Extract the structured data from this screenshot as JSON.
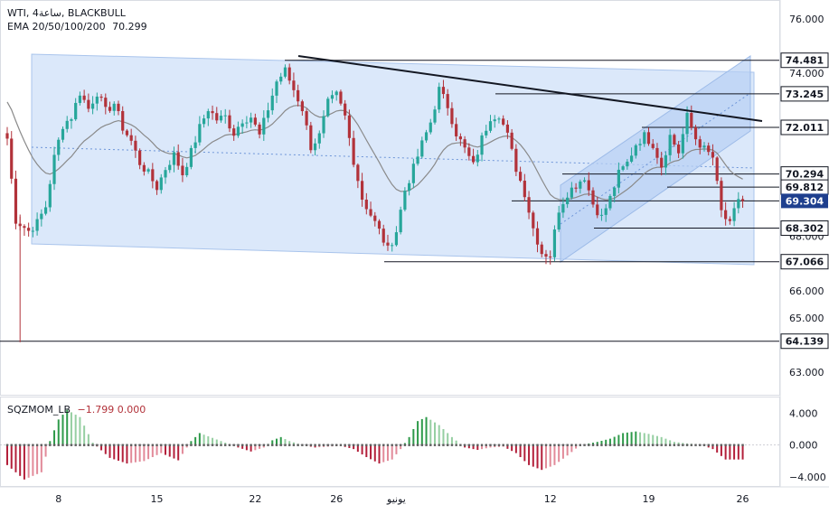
{
  "header": {
    "symbol": "WTI, 4ساعة, BLACKBULL",
    "indicator": "EMA 20/50/100/200",
    "indicator_value": "70.299"
  },
  "sub_header": {
    "indicator": "SQZMOM_LB",
    "values": "−1.799  0.000"
  },
  "colors": {
    "up": "#26a69a",
    "down": "#b2323a",
    "ema": "#8a8a8a",
    "channel_fill": "#cfe0f8",
    "trendline": "#131722",
    "price_tag": "#1e3f8e",
    "mom_pos": "#67b377",
    "mom_neg": "#c33b52"
  },
  "chart_data": [
    {
      "type": "candlestick",
      "title": "WTI, 4ساعة, BLACKBULL",
      "x_ticks": [
        "8",
        "15",
        "22",
        "26",
        "يونيو",
        "12",
        "19",
        "26"
      ],
      "y_ticks": [
        "76.000",
        "74.000",
        "68.000",
        "66.000",
        "65.000",
        "63.000"
      ],
      "ylim": [
        62.6,
        76.5
      ],
      "price_levels": [
        "74.481",
        "73.245",
        "72.011",
        "70.294",
        "69.812",
        "68.302",
        "67.066",
        "64.139"
      ],
      "current_price": "69.304",
      "ema": "70.299",
      "close_path": [
        [
          0,
          71.6
        ],
        [
          2,
          68.6
        ],
        [
          5,
          68.2
        ],
        [
          7,
          68.5
        ],
        [
          9,
          69.1
        ],
        [
          11,
          70.9
        ],
        [
          13,
          72.1
        ],
        [
          15,
          72.4
        ],
        [
          17,
          73.3
        ],
        [
          19,
          72.7
        ],
        [
          21,
          73.3
        ],
        [
          23,
          72.6
        ],
        [
          25,
          72.9
        ],
        [
          27,
          72.0
        ],
        [
          29,
          71.5
        ],
        [
          31,
          70.7
        ],
        [
          33,
          70.3
        ],
        [
          35,
          69.8
        ],
        [
          37,
          70.5
        ],
        [
          39,
          71.0
        ],
        [
          41,
          70.3
        ],
        [
          43,
          71.1
        ],
        [
          45,
          72.0
        ],
        [
          47,
          72.7
        ],
        [
          49,
          72.3
        ],
        [
          51,
          72.4
        ],
        [
          53,
          71.8
        ],
        [
          55,
          72.3
        ],
        [
          57,
          72.4
        ],
        [
          59,
          71.7
        ],
        [
          61,
          72.7
        ],
        [
          63,
          73.7
        ],
        [
          65,
          74.1
        ],
        [
          67,
          73.4
        ],
        [
          69,
          72.7
        ],
        [
          71,
          71.3
        ],
        [
          73,
          71.7
        ],
        [
          75,
          72.9
        ],
        [
          77,
          73.2
        ],
        [
          79,
          72.4
        ],
        [
          81,
          70.8
        ],
        [
          83,
          69.4
        ],
        [
          85,
          68.8
        ],
        [
          87,
          68.2
        ],
        [
          89,
          67.5
        ],
        [
          91,
          68.2
        ],
        [
          93,
          69.7
        ],
        [
          95,
          70.5
        ],
        [
          97,
          71.4
        ],
        [
          99,
          72.2
        ],
        [
          101,
          73.4
        ],
        [
          103,
          72.8
        ],
        [
          105,
          71.8
        ],
        [
          107,
          71.2
        ],
        [
          109,
          70.6
        ],
        [
          111,
          71.6
        ],
        [
          113,
          72.4
        ],
        [
          115,
          72.5
        ],
        [
          117,
          71.7
        ],
        [
          119,
          70.5
        ],
        [
          121,
          69.6
        ],
        [
          123,
          68.3
        ],
        [
          125,
          67.4
        ],
        [
          127,
          67.3
        ],
        [
          129,
          69.0
        ],
        [
          131,
          69.6
        ],
        [
          133,
          69.9
        ],
        [
          135,
          70.2
        ],
        [
          137,
          69.2
        ],
        [
          139,
          68.7
        ],
        [
          141,
          69.4
        ],
        [
          143,
          70.3
        ],
        [
          145,
          70.7
        ],
        [
          147,
          71.4
        ],
        [
          149,
          71.7
        ],
        [
          151,
          71.4
        ],
        [
          153,
          70.6
        ],
        [
          155,
          71.7
        ],
        [
          157,
          71.1
        ],
        [
          159,
          72.4
        ],
        [
          161,
          71.6
        ],
        [
          163,
          71.2
        ],
        [
          165,
          70.9
        ],
        [
          167,
          68.9
        ],
        [
          169,
          68.4
        ],
        [
          171,
          69.4
        ],
        [
          172,
          69.3
        ]
      ]
    },
    {
      "type": "bar",
      "title": "SQZMOM_LB",
      "y_ticks": [
        "4.000",
        "0.000",
        "−4.000"
      ],
      "ylim": [
        -5,
        5.5
      ],
      "values_path": [
        [
          0,
          -2.5
        ],
        [
          4,
          -4.3
        ],
        [
          8,
          -3.4
        ],
        [
          10,
          0.5
        ],
        [
          12,
          3.2
        ],
        [
          14,
          4.4
        ],
        [
          17,
          3.5
        ],
        [
          20,
          0.3
        ],
        [
          24,
          -1.6
        ],
        [
          28,
          -2.3
        ],
        [
          32,
          -2.0
        ],
        [
          36,
          -1.0
        ],
        [
          40,
          -1.9
        ],
        [
          43,
          0.5
        ],
        [
          45,
          1.5
        ],
        [
          48,
          0.9
        ],
        [
          51,
          0.3
        ],
        [
          54,
          -0.3
        ],
        [
          57,
          -0.8
        ],
        [
          60,
          -0.3
        ],
        [
          62,
          0.6
        ],
        [
          64,
          1.0
        ],
        [
          66,
          0.5
        ],
        [
          69,
          0.0
        ],
        [
          72,
          -0.3
        ],
        [
          75,
          -0.2
        ],
        [
          78,
          -0.1
        ],
        [
          81,
          -0.5
        ],
        [
          84,
          -1.5
        ],
        [
          87,
          -2.3
        ],
        [
          90,
          -1.8
        ],
        [
          92,
          -0.5
        ],
        [
          94,
          1.0
        ],
        [
          96,
          3.0
        ],
        [
          98,
          3.5
        ],
        [
          101,
          2.5
        ],
        [
          104,
          1.0
        ],
        [
          107,
          -0.3
        ],
        [
          110,
          -0.6
        ],
        [
          113,
          -0.3
        ],
        [
          116,
          -0.2
        ],
        [
          119,
          -1.0
        ],
        [
          122,
          -2.5
        ],
        [
          125,
          -3.1
        ],
        [
          128,
          -2.5
        ],
        [
          131,
          -1.3
        ],
        [
          134,
          0.0
        ],
        [
          138,
          0.4
        ],
        [
          141,
          0.8
        ],
        [
          144,
          1.5
        ],
        [
          147,
          1.7
        ],
        [
          150,
          1.4
        ],
        [
          153,
          1.0
        ],
        [
          156,
          0.4
        ],
        [
          159,
          0.2
        ],
        [
          162,
          0.1
        ],
        [
          165,
          -0.5
        ],
        [
          168,
          -1.8
        ],
        [
          172,
          -1.8
        ]
      ]
    }
  ]
}
